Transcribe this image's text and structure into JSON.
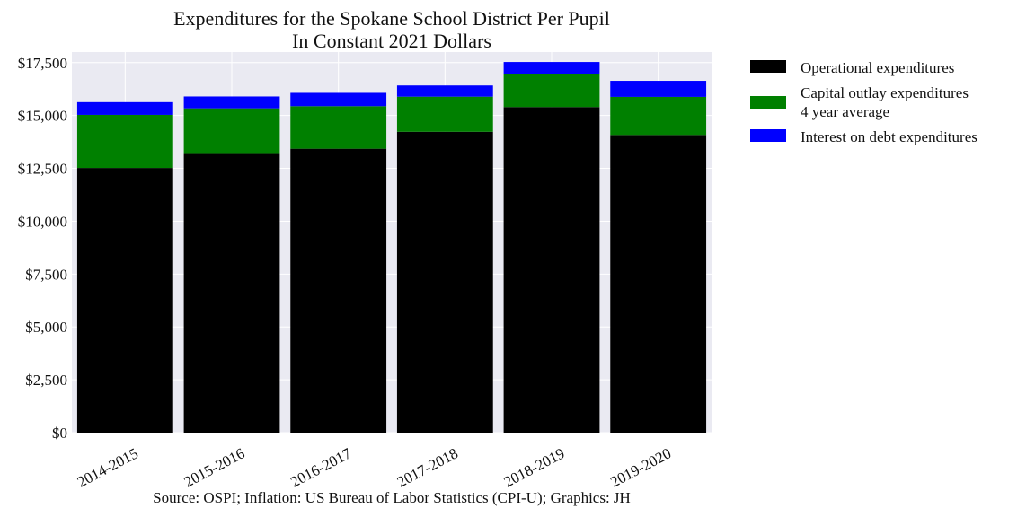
{
  "chart_data": {
    "type": "bar",
    "stacked": true,
    "title_lines": [
      "Expenditures for the Spokane School District Per Pupil",
      "In Constant 2021 Dollars"
    ],
    "xlabel": "",
    "ylabel": "",
    "categories": [
      "2014-2015",
      "2015-2016",
      "2016-2017",
      "2017-2018",
      "2018-2019",
      "2019-2020"
    ],
    "series": [
      {
        "name": "Operational expenditures",
        "color": "#000000",
        "values": [
          12520,
          13180,
          13430,
          14230,
          15400,
          14080
        ]
      },
      {
        "name_lines": [
          "Capital outlay expenditures",
          "4 year average"
        ],
        "color": "#008000",
        "values": [
          2510,
          2160,
          2010,
          1660,
          1560,
          1800
        ]
      },
      {
        "name": "Interest on debt expenditures",
        "color": "#0000ff",
        "values": [
          600,
          560,
          630,
          530,
          570,
          760
        ]
      }
    ],
    "yticks": [
      0,
      2500,
      5000,
      7500,
      10000,
      12500,
      15000,
      17500
    ],
    "ytick_labels": [
      "$0",
      "$2,500",
      "$5,000",
      "$7,500",
      "$10,000",
      "$12,500",
      "$15,000",
      "$17,500"
    ],
    "ylim": [
      0,
      18000
    ],
    "grid": true,
    "legend_position": "outside-right-top",
    "source_note": "Source: OSPI; Inflation: US Bureau of Labor Statistics (CPI-U); Graphics: JH",
    "colors": {
      "plot_background": "#eaeaf2",
      "grid": "#ffffff"
    }
  }
}
